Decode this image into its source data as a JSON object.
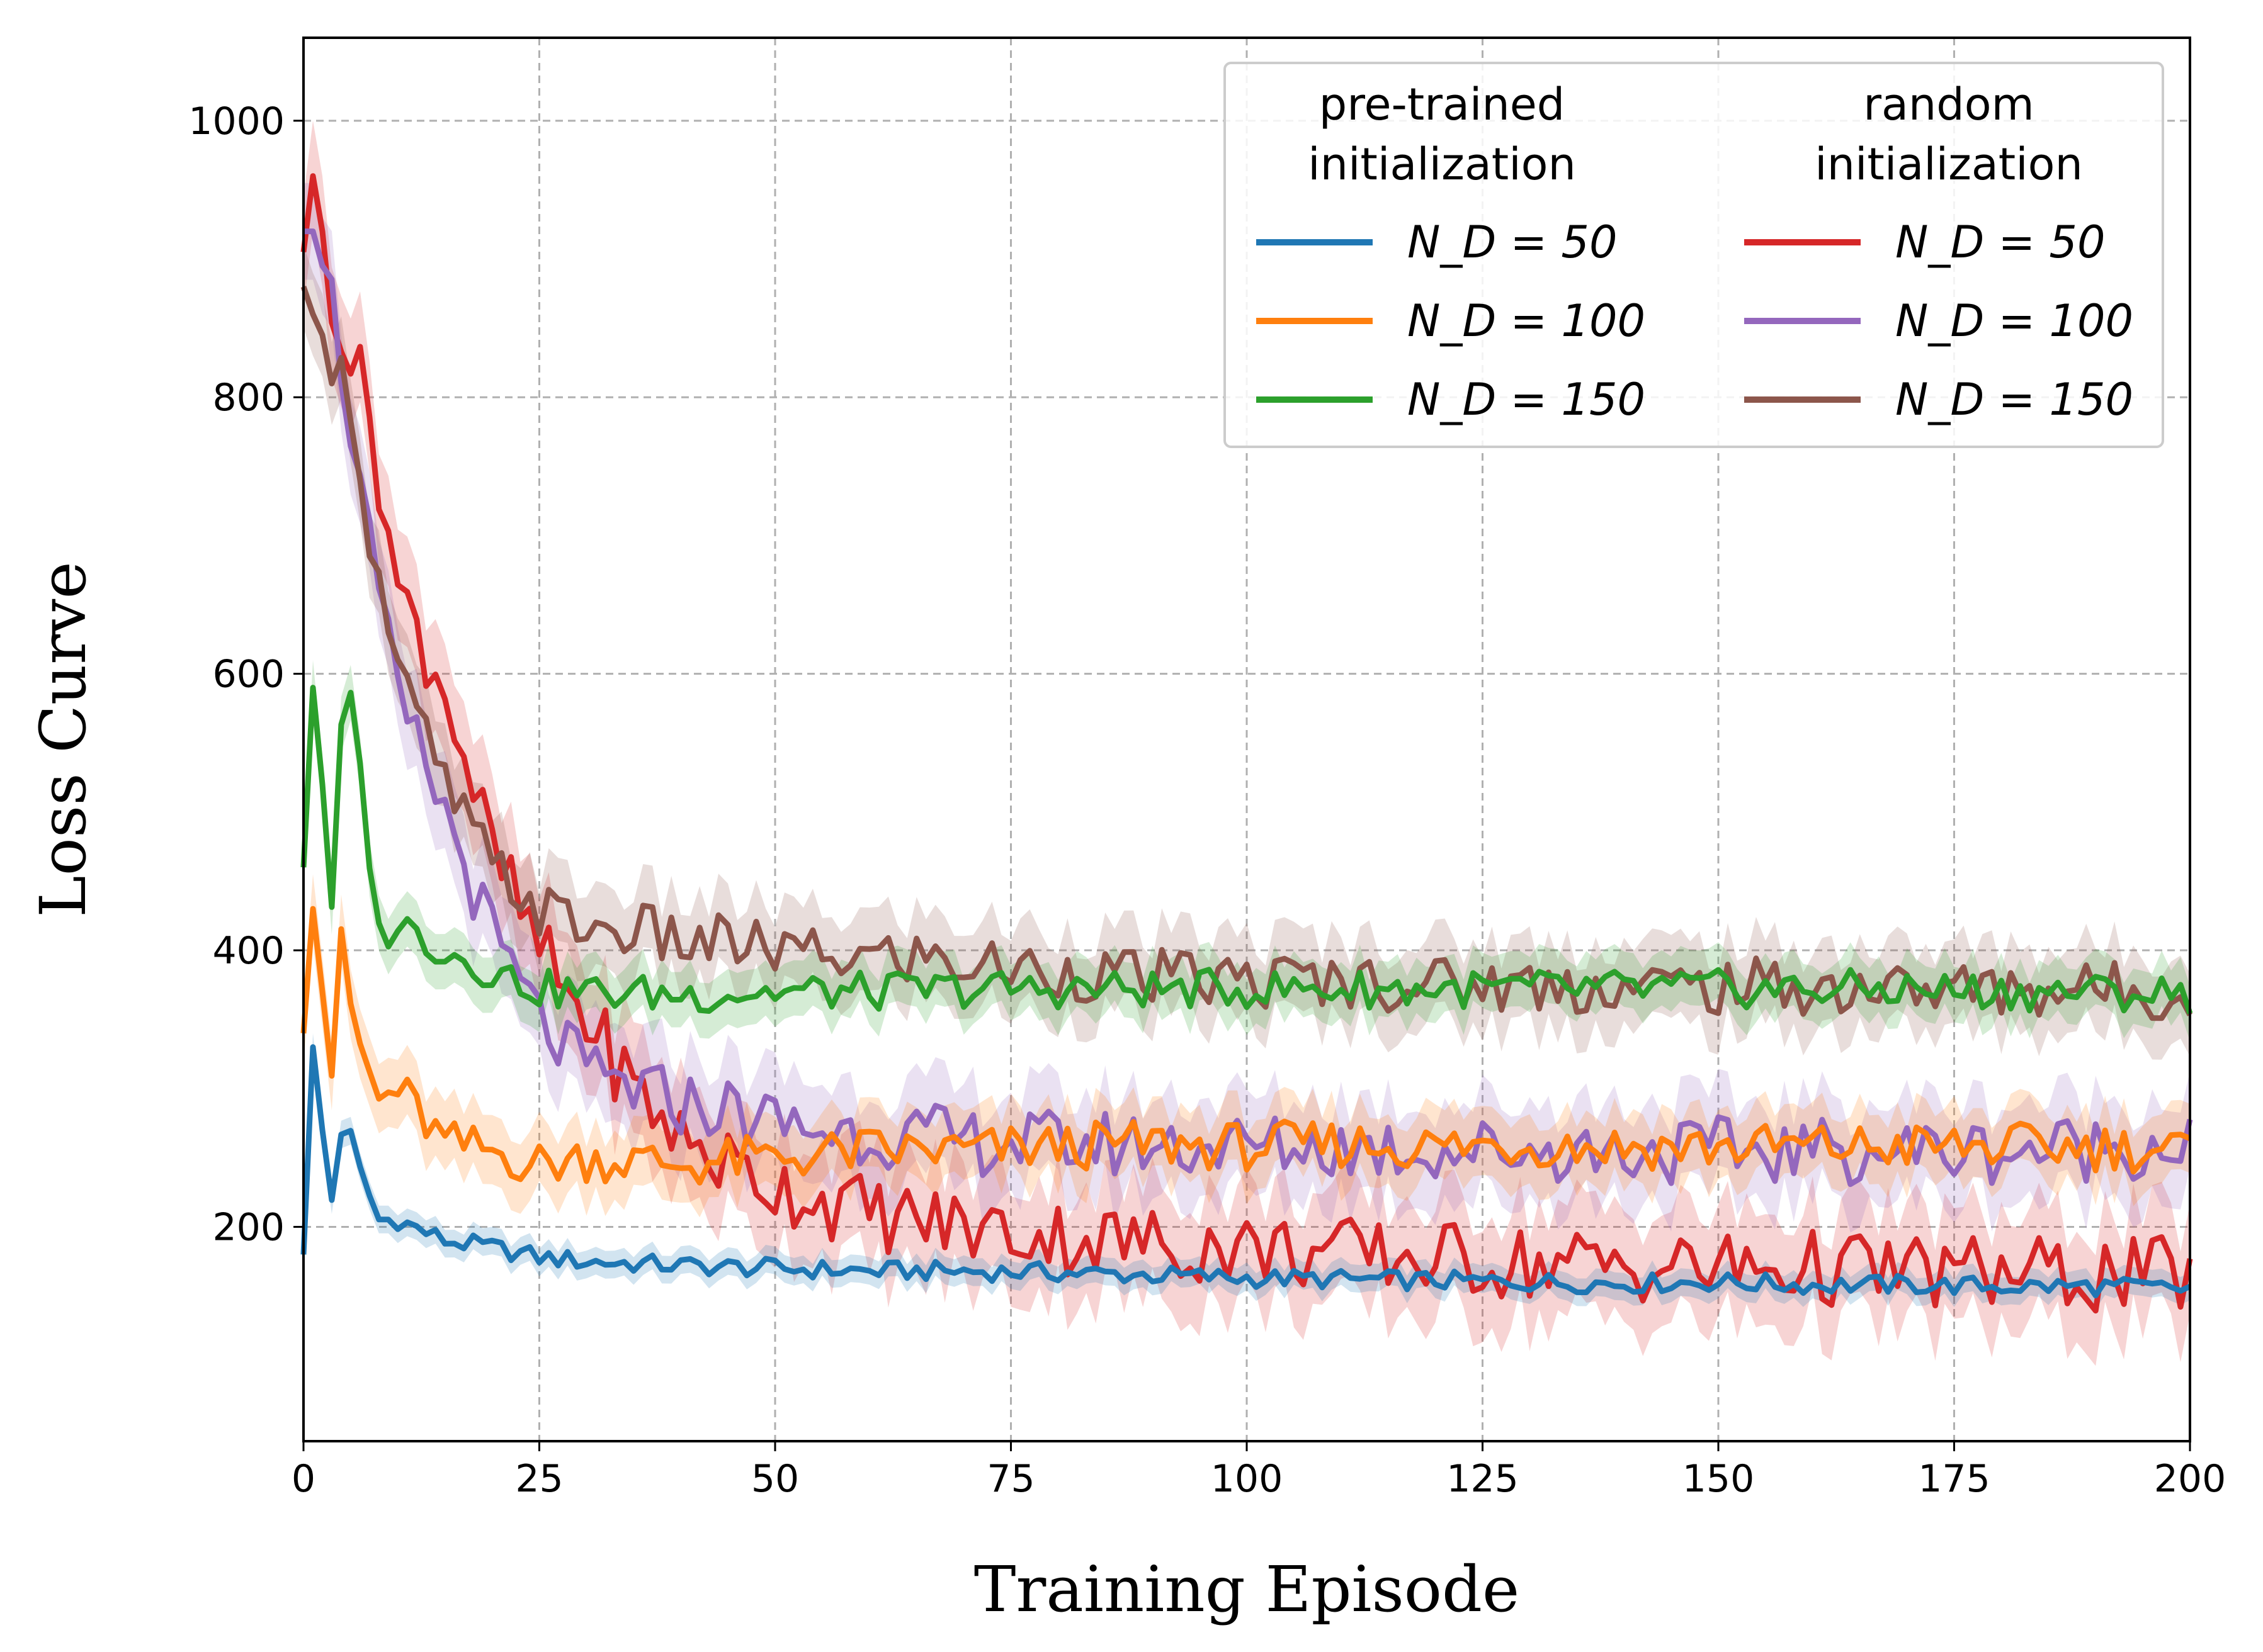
{
  "chart_data": {
    "type": "line",
    "title": "",
    "xlabel": "Training Episode",
    "ylabel": "Loss Curve",
    "xlim": [
      0,
      200
    ],
    "ylim": [
      45,
      1060
    ],
    "grid": true,
    "legend_placement": "top-right",
    "x_ticks": [
      0,
      25,
      50,
      75,
      100,
      125,
      150,
      175,
      200
    ],
    "x_tick_labels": [
      "0",
      "25",
      "50",
      "75",
      "100",
      "125",
      "150",
      "175",
      "200"
    ],
    "y_ticks": [
      200,
      400,
      600,
      800,
      1000
    ],
    "y_tick_labels": [
      "200",
      "400",
      "600",
      "800",
      "1000"
    ],
    "legend": {
      "groups": [
        {
          "title_lines": [
            "pre-trained",
            "initialization"
          ],
          "entries": [
            "N_D = 50",
            "N_D = 100",
            "N_D = 150"
          ]
        },
        {
          "title_lines": [
            "random",
            "initialization"
          ],
          "entries": [
            "N_D = 50",
            "N_D = 100",
            "N_D = 150"
          ]
        }
      ]
    },
    "series": [
      {
        "name": "pre-trained N_D = 50",
        "group": "pre-trained initialization",
        "color": "#1f77b4",
        "band": 10,
        "x": [
          0,
          1,
          2,
          3,
          4,
          5,
          6,
          8,
          10,
          15,
          20,
          25,
          30,
          40,
          50,
          60,
          70,
          80,
          90,
          100,
          110,
          120,
          130,
          140,
          150,
          160,
          170,
          180,
          190,
          200
        ],
        "y": [
          180,
          330,
          270,
          220,
          270,
          265,
          240,
          205,
          205,
          190,
          185,
          178,
          175,
          172,
          170,
          168,
          168,
          167,
          165,
          163,
          162,
          161,
          160,
          159,
          160,
          158,
          158,
          157,
          157,
          155
        ]
      },
      {
        "name": "pre-trained N_D = 100",
        "group": "pre-trained initialization",
        "color": "#ff7f0e",
        "band": 25,
        "x": [
          0,
          1,
          2,
          3,
          4,
          5,
          6,
          8,
          10,
          15,
          20,
          25,
          30,
          40,
          50,
          60,
          70,
          80,
          90,
          100,
          110,
          120,
          130,
          140,
          150,
          160,
          170,
          180,
          190,
          200
        ],
        "y": [
          340,
          430,
          370,
          315,
          400,
          360,
          330,
          290,
          300,
          260,
          255,
          245,
          250,
          245,
          250,
          255,
          255,
          258,
          260,
          258,
          260,
          258,
          260,
          258,
          258,
          258,
          258,
          258,
          258,
          255
        ]
      },
      {
        "name": "pre-trained N_D = 150",
        "group": "pre-trained initialization",
        "color": "#2ca02c",
        "band": 20,
        "x": [
          0,
          1,
          2,
          3,
          4,
          5,
          6,
          8,
          10,
          15,
          20,
          25,
          30,
          40,
          50,
          60,
          70,
          80,
          90,
          100,
          110,
          120,
          130,
          140,
          150,
          160,
          170,
          180,
          190,
          200
        ],
        "y": [
          460,
          590,
          520,
          420,
          560,
          575,
          530,
          410,
          420,
          400,
          385,
          372,
          370,
          368,
          370,
          370,
          372,
          372,
          372,
          372,
          372,
          372,
          372,
          372,
          372,
          372,
          372,
          370,
          370,
          368
        ]
      },
      {
        "name": "random N_D = 50",
        "group": "random initialization",
        "color": "#d62728",
        "band": 40,
        "x": [
          0,
          1,
          3,
          5,
          7,
          10,
          15,
          20,
          25,
          30,
          35,
          40,
          45,
          50,
          55,
          60,
          65,
          70,
          80,
          90,
          100,
          110,
          120,
          130,
          140,
          150,
          160,
          170,
          180,
          190,
          200
        ],
        "y": [
          905,
          960,
          880,
          830,
          790,
          660,
          590,
          470,
          400,
          350,
          300,
          265,
          245,
          230,
          220,
          210,
          205,
          200,
          193,
          188,
          185,
          180,
          177,
          174,
          172,
          170,
          170,
          168,
          166,
          165,
          165
        ]
      },
      {
        "name": "random N_D = 100",
        "group": "random initialization",
        "color": "#9467bd",
        "band": 35,
        "x": [
          0,
          1,
          3,
          5,
          7,
          10,
          15,
          20,
          25,
          30,
          35,
          40,
          45,
          50,
          55,
          60,
          65,
          70,
          80,
          90,
          100,
          110,
          120,
          130,
          140,
          150,
          160,
          170,
          180,
          190,
          200
        ],
        "y": [
          920,
          920,
          870,
          780,
          690,
          580,
          500,
          410,
          350,
          310,
          300,
          290,
          285,
          275,
          270,
          268,
          265,
          262,
          260,
          260,
          258,
          258,
          256,
          256,
          255,
          255,
          255,
          255,
          255,
          258,
          260
        ]
      },
      {
        "name": "random N_D = 150",
        "group": "random initialization",
        "color": "#8c564b",
        "band": 30,
        "x": [
          0,
          1,
          3,
          5,
          7,
          10,
          15,
          20,
          25,
          30,
          35,
          40,
          45,
          50,
          55,
          60,
          65,
          70,
          80,
          90,
          100,
          110,
          120,
          130,
          140,
          150,
          160,
          170,
          180,
          190,
          200
        ],
        "y": [
          880,
          860,
          830,
          800,
          700,
          600,
          520,
          460,
          430,
          415,
          415,
          405,
          405,
          400,
          395,
          395,
          395,
          390,
          385,
          380,
          378,
          378,
          376,
          375,
          374,
          374,
          373,
          372,
          372,
          372,
          370
        ]
      }
    ]
  }
}
